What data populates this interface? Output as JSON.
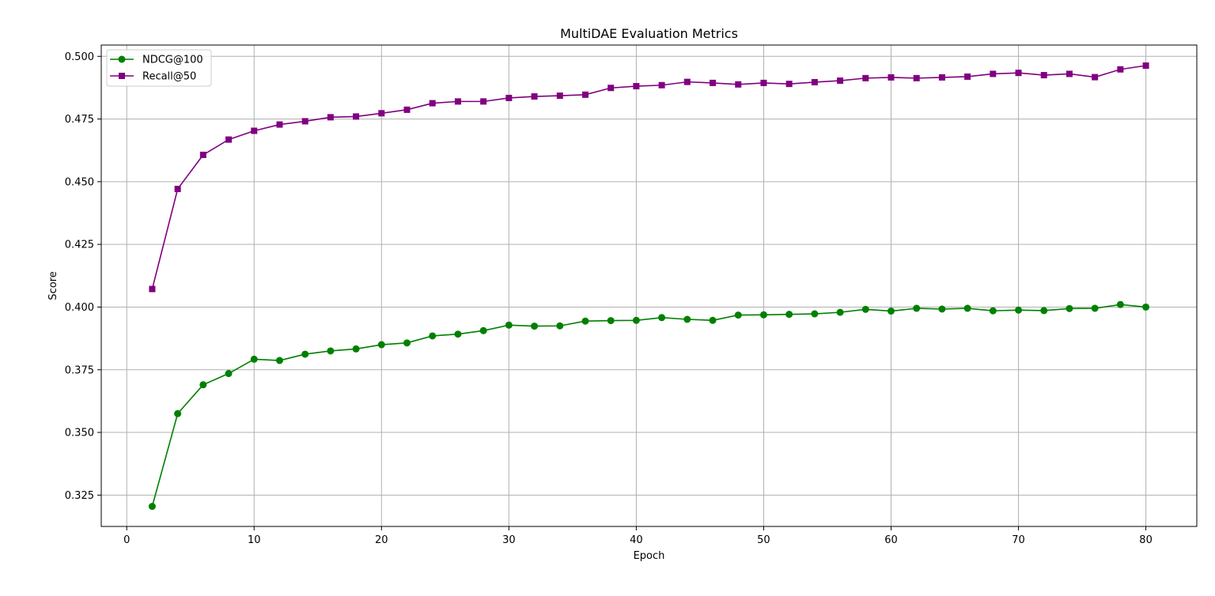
{
  "chart_data": {
    "type": "line",
    "title": "MultiDAE Evaluation Metrics",
    "xlabel": "Epoch",
    "ylabel": "Score",
    "xlim": [
      -2,
      84
    ],
    "ylim": [
      0.3125,
      0.5045
    ],
    "xticks": [
      0,
      10,
      20,
      30,
      40,
      50,
      60,
      70,
      80
    ],
    "yticks": [
      0.325,
      0.35,
      0.375,
      0.4,
      0.425,
      0.45,
      0.475,
      0.5
    ],
    "ytick_labels": [
      "0.325",
      "0.350",
      "0.375",
      "0.400",
      "0.425",
      "0.450",
      "0.475",
      "0.500"
    ],
    "grid": true,
    "legend_position": "top-left",
    "x": [
      2,
      4,
      6,
      8,
      10,
      12,
      14,
      16,
      18,
      20,
      22,
      24,
      26,
      28,
      30,
      32,
      34,
      36,
      38,
      40,
      42,
      44,
      46,
      48,
      50,
      52,
      54,
      56,
      58,
      60,
      62,
      64,
      66,
      68,
      70,
      72,
      74,
      76,
      78,
      80
    ],
    "series": [
      {
        "name": "NDCG@100",
        "color": "#008000",
        "marker": "circle",
        "values": [
          0.3205,
          0.3575,
          0.369,
          0.3735,
          0.3792,
          0.3787,
          0.3812,
          0.3825,
          0.3833,
          0.385,
          0.3857,
          0.3885,
          0.3892,
          0.3906,
          0.3928,
          0.3924,
          0.3925,
          0.3944,
          0.3946,
          0.3947,
          0.3958,
          0.3951,
          0.3947,
          0.3968,
          0.3969,
          0.3971,
          0.3973,
          0.3979,
          0.3991,
          0.3984,
          0.3995,
          0.3992,
          0.3995,
          0.3985,
          0.3988,
          0.3986,
          0.3994,
          0.3995,
          0.401,
          0.4
        ]
      },
      {
        "name": "Recall@50",
        "color": "#800080",
        "marker": "square",
        "values": [
          0.4072,
          0.4471,
          0.4607,
          0.4668,
          0.4703,
          0.4728,
          0.4741,
          0.4757,
          0.476,
          0.4773,
          0.4787,
          0.4813,
          0.482,
          0.482,
          0.4834,
          0.484,
          0.4843,
          0.4847,
          0.4874,
          0.4881,
          0.4885,
          0.4898,
          0.4894,
          0.4888,
          0.4894,
          0.489,
          0.4897,
          0.4903,
          0.4913,
          0.4916,
          0.4913,
          0.4916,
          0.4919,
          0.493,
          0.4934,
          0.4925,
          0.493,
          0.4917,
          0.4948,
          0.4963
        ]
      }
    ]
  }
}
